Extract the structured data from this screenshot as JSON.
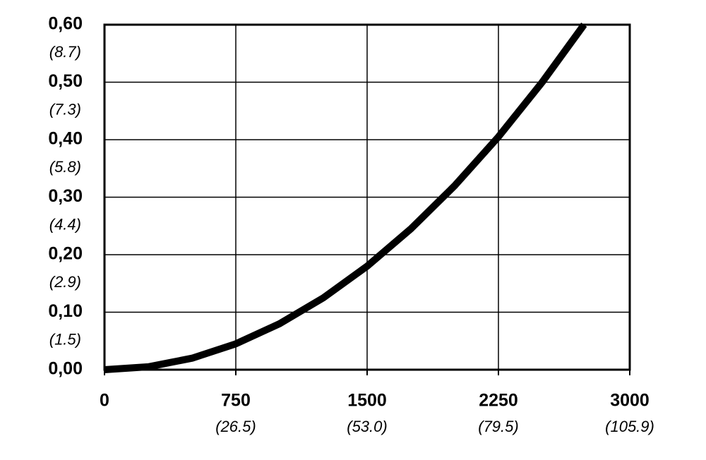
{
  "chart_data": {
    "type": "line",
    "x": [
      0,
      250,
      500,
      750,
      1000,
      1250,
      1500,
      1750,
      2000,
      2250,
      2500,
      2739
    ],
    "series": [
      {
        "color": "#000000",
        "values": [
          0,
          0.005,
          0.02,
          0.045,
          0.08,
          0.125,
          0.18,
          0.245,
          0.32,
          0.405,
          0.5,
          0.6
        ]
      }
    ],
    "xlim": [
      0,
      3000
    ],
    "ylim": [
      0,
      0.6
    ],
    "xticks": [
      0,
      {
        "value": 750,
        "label": "750",
        "sublabel": "(26.5)"
      },
      {
        "value": 1500,
        "label": "1500",
        "sublabel": "(53.0)"
      },
      {
        "value": 2250,
        "label": "2250",
        "sublabel": "(79.5)"
      },
      {
        "value": 3000,
        "label": "3000",
        "sublabel": "(105.9)"
      }
    ],
    "yticks": [
      {
        "value": 0,
        "label": "0,00"
      },
      {
        "value": 0.1,
        "label": "0,10",
        "sublabel": "(1.5)"
      },
      {
        "value": 0.2,
        "label": "0,20",
        "sublabel": "(2.9)"
      },
      {
        "value": 0.3,
        "label": "0,30",
        "sublabel": "(4.4)"
      },
      {
        "value": 0.4,
        "label": "0,40",
        "sublabel": "(5.8)"
      },
      {
        "value": 0.5,
        "label": "0,50",
        "sublabel": "(7.3)"
      },
      {
        "value": 0.6,
        "label": "0,60",
        "sublabel": "(8.7)"
      }
    ],
    "grid": true
  }
}
